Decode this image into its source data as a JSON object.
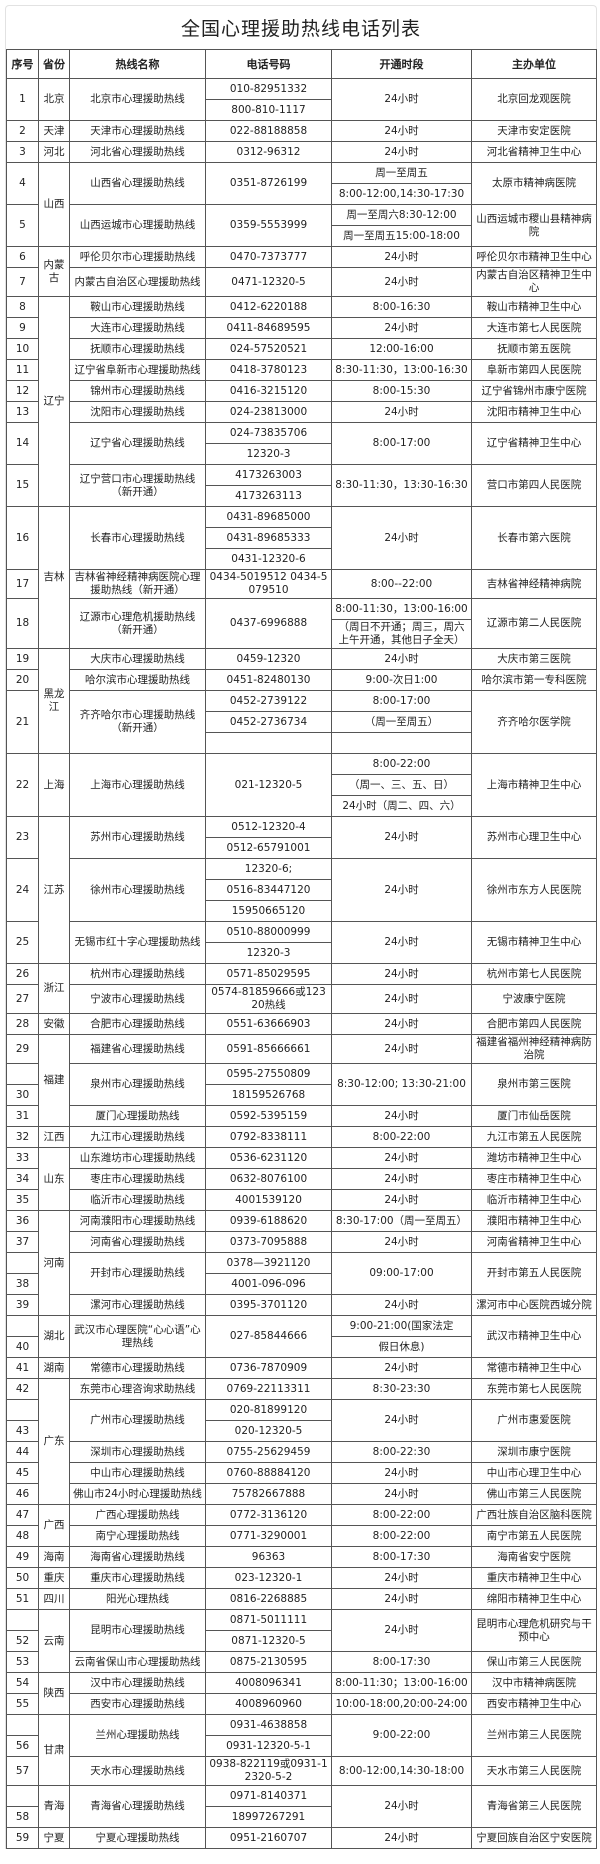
{
  "title": "全国心理援助热线电话列表",
  "headers": [
    "序号",
    "省份",
    "热线名称",
    "电话号码",
    "开通时段",
    "主办单位"
  ],
  "entries": [
    {
      "n": "1",
      "province": "北京",
      "name": "北京市心理援助热线",
      "phones": [
        "010-82951332",
        "800-810-1117"
      ],
      "hours": [
        "24小时"
      ],
      "org": "北京回龙观医院"
    },
    {
      "n": "2",
      "province": "天津",
      "name": "天津市心理援助热线",
      "phones": [
        "022-88188858"
      ],
      "hours": [
        "24小时"
      ],
      "org": "天津市安定医院"
    },
    {
      "n": "3",
      "province": "河北",
      "name": "河北省心理援助热线",
      "phones": [
        "0312-96312"
      ],
      "hours": [
        "24小时"
      ],
      "org": "河北省精神卫生中心"
    },
    {
      "n": "4",
      "province": "山西",
      "name": "山西省心理援助热线",
      "phones": [
        "0351-8726199"
      ],
      "hours": [
        "周一至周五",
        "8:00-12:00,14:30-17:30"
      ],
      "org": "太原市精神病医院"
    },
    {
      "n": "5",
      "province": "山西",
      "name": "山西运城市心理援助热线",
      "phones": [
        "0359-5553999"
      ],
      "hours": [
        "周一至周六8:30-12:00",
        "周一至周五15:00-18:00"
      ],
      "org": "山西运城市稷山县精神病院"
    },
    {
      "n": "6",
      "province": "内蒙古",
      "name": "呼伦贝尔市心理援助热线",
      "phones": [
        "0470-7373777"
      ],
      "hours": [
        "24小时"
      ],
      "org": "呼伦贝尔市精神卫生中心"
    },
    {
      "n": "7",
      "province": "内蒙古",
      "name": "内蒙古自治区心理援助热线",
      "phones": [
        "0471-12320-5"
      ],
      "hours": [
        "24小时"
      ],
      "org": "内蒙古自治区精神卫生中心"
    },
    {
      "n": "8",
      "province": "辽宁",
      "name": "鞍山市心理援助热线",
      "phones": [
        "0412-6220188"
      ],
      "hours": [
        "8:00-16:30"
      ],
      "org": "鞍山市精神卫生中心"
    },
    {
      "n": "9",
      "province": "辽宁",
      "name": "大连市心理援助热线",
      "phones": [
        "0411-84689595"
      ],
      "hours": [
        "24小时"
      ],
      "org": "大连市第七人民医院"
    },
    {
      "n": "10",
      "province": "辽宁",
      "name": "抚顺市心理援助热线",
      "phones": [
        "024-57520521"
      ],
      "hours": [
        "12:00-16:00"
      ],
      "org": "抚顺市第五医院"
    },
    {
      "n": "11",
      "province": "辽宁",
      "name": "辽宁省阜新市心理援助热线",
      "phones": [
        "0418-3780123"
      ],
      "hours": [
        "8:30-11:30，13:00-16:30"
      ],
      "org": "阜新市第四人民医院"
    },
    {
      "n": "12",
      "province": "辽宁",
      "name": "锦州市心理援助热线",
      "phones": [
        "0416-3215120"
      ],
      "hours": [
        "8:00-15:30"
      ],
      "org": "辽宁省锦州市康宁医院"
    },
    {
      "n": "13",
      "province": "辽宁",
      "name": "沈阳市心理援助热线",
      "phones": [
        "024-23813000"
      ],
      "hours": [
        "24小时"
      ],
      "org": "沈阳市精神卫生中心"
    },
    {
      "n": "14",
      "province": "辽宁",
      "name": "辽宁省心理援助热线",
      "phones": [
        "024-73835706",
        "12320-3"
      ],
      "hours": [
        "8:00-17:00"
      ],
      "org": "辽宁省精神卫生中心"
    },
    {
      "n": "15",
      "province": "辽宁",
      "name": "辽宁营口市心理援助热线（新开通）",
      "phones": [
        "4173263003",
        "4173263113"
      ],
      "hours": [
        "8:30-11:30，13:30-16:30"
      ],
      "org": "营口市第四人民医院"
    },
    {
      "n": "16",
      "province": "吉林",
      "name": "长春市心理援助热线",
      "phones": [
        "0431-89685000",
        "0431-89685333",
        "0431-12320-6"
      ],
      "hours": [
        "24小时"
      ],
      "org": "长春市第六医院"
    },
    {
      "n": "17",
      "province": "吉林",
      "name": "吉林省神经精神病医院心理援助热线（新开通）",
      "phones": [
        "0434-5019512 0434-5079510"
      ],
      "hours": [
        "8:00--22:00"
      ],
      "org": "吉林省神经精神病院"
    },
    {
      "n": "18",
      "province": "吉林",
      "name": "辽源市心理危机援助热线（新开通）",
      "phones": [
        "0437-6996888"
      ],
      "hours": [
        "8:00-11:30，13:00-16:00",
        "（周日不开通；周三，周六上午开通，其他日子全天）"
      ],
      "org": "辽源市第二人民医院"
    },
    {
      "n": "19",
      "province": "黑龙江",
      "name": "大庆市心理援助热线",
      "phones": [
        "0459-12320"
      ],
      "hours": [
        "24小时"
      ],
      "org": "大庆市第三医院"
    },
    {
      "n": "20",
      "province": "黑龙江",
      "name": "哈尔滨市心理援助热线",
      "phones": [
        "0451-82480130"
      ],
      "hours": [
        "9:00-次日1:00"
      ],
      "org": "哈尔滨市第一专科医院"
    },
    {
      "n": "21",
      "province": "黑龙江",
      "name": "齐齐哈尔市心理援助热线（新开通）",
      "phones": [
        "0452-2739122",
        "0452-2736734",
        ""
      ],
      "hours": [
        "8:00-17:00",
        "（周一至周五）",
        ""
      ],
      "org": "齐齐哈尔医学院"
    },
    {
      "n": "22",
      "province": "上海",
      "name": "上海市心理援助热线",
      "phones": [
        "021-12320-5"
      ],
      "hours": [
        "8:00-22:00",
        "（周一、三、五、日）",
        "24小时（周二、四、六）"
      ],
      "org": "上海市精神卫生中心"
    },
    {
      "n": "23",
      "province": "江苏",
      "name": "苏州市心理援助热线",
      "phones": [
        "0512-12320-4",
        "0512-65791001"
      ],
      "hours": [
        "24小时"
      ],
      "org": "苏州市心理卫生中心"
    },
    {
      "n": "24",
      "province": "江苏",
      "name": "徐州市心理援助热线",
      "phones": [
        "12320-6;",
        "0516-83447120",
        "15950665120"
      ],
      "hours": [
        "24小时"
      ],
      "org": "徐州市东方人民医院"
    },
    {
      "n": "25",
      "province": "江苏",
      "name": "无锡市红十字心理援助热线",
      "phones": [
        "0510-88000999",
        "12320-3"
      ],
      "hours": [
        "24小时"
      ],
      "org": "无锡市精神卫生中心"
    },
    {
      "n": "26",
      "province": "浙江",
      "name": "杭州市心理援助热线",
      "phones": [
        "0571-85029595"
      ],
      "hours": [
        "24小时"
      ],
      "org": "杭州市第七人民医院"
    },
    {
      "n": "27",
      "province": "浙江",
      "name": "宁波市心理援助热线",
      "phones": [
        "0574-81859666或12320热线"
      ],
      "hours": [
        "24小时"
      ],
      "org": "宁波康宁医院"
    },
    {
      "n": "28",
      "province": "安徽",
      "name": "合肥市心理援助热线",
      "phones": [
        "0551-63666903"
      ],
      "hours": [
        "24小时"
      ],
      "org": "合肥市第四人民医院"
    },
    {
      "n": "29",
      "province": "福建",
      "name": "福建省心理援助热线",
      "phones": [
        "0591-85666661"
      ],
      "hours": [
        "24小时"
      ],
      "org": "福建省福州神经精神病防治院"
    },
    {
      "n": "30",
      "province": "福建",
      "name": "泉州市心理援助热线",
      "phones": [
        "0595-27550809",
        "18159526768"
      ],
      "hours": [
        "8:30-12:00; 13:30-21:00"
      ],
      "org": "泉州市第三医院",
      "split": true
    },
    {
      "n": "31",
      "province": "福建",
      "name": "厦门心理援助热线",
      "phones": [
        "0592-5395159"
      ],
      "hours": [
        "24小时"
      ],
      "org": "厦门市仙岳医院"
    },
    {
      "n": "32",
      "province": "江西",
      "name": "九江市心理援助热线",
      "phones": [
        "0792-8338111"
      ],
      "hours": [
        "8:00-22:00"
      ],
      "org": "九江市第五人民医院"
    },
    {
      "n": "33",
      "province": "山东",
      "name": "山东潍坊市心理援助热线",
      "phones": [
        "0536-6231120"
      ],
      "hours": [
        "24小时"
      ],
      "org": "潍坊市精神卫生中心"
    },
    {
      "n": "34",
      "province": "山东",
      "name": "枣庄市心理援助热线",
      "phones": [
        "0632-8076100"
      ],
      "hours": [
        "24小时"
      ],
      "org": "枣庄市精神卫生中心"
    },
    {
      "n": "35",
      "province": "山东",
      "name": "临沂市心理援助热线",
      "phones": [
        "4001539120"
      ],
      "hours": [
        "24小时"
      ],
      "org": "临沂市精神卫生中心"
    },
    {
      "n": "36",
      "province": "河南",
      "name": "河南濮阳市心理援助热线",
      "phones": [
        "0939-6188620"
      ],
      "hours": [
        "8:30-17:00（周一至周五）"
      ],
      "org": "濮阳市精神卫生中心"
    },
    {
      "n": "37",
      "province": "河南",
      "name": "河南省心理援助热线",
      "phones": [
        "0373-7095888"
      ],
      "hours": [
        "24小时"
      ],
      "org": "河南省精神卫生中心"
    },
    {
      "n": "38",
      "province": "河南",
      "name": "开封市心理援助热线",
      "phones": [
        "0378—3921120",
        "4001-096-096"
      ],
      "hours": [
        "09:00-17:00"
      ],
      "org": "开封市第五人民医院",
      "split": true
    },
    {
      "n": "39",
      "province": "河南",
      "name": "漯河市心理援助热线",
      "phones": [
        "0395-3701120"
      ],
      "hours": [
        "24小时"
      ],
      "org": "漯河市中心医院西城分院"
    },
    {
      "n": "40",
      "province": "湖北",
      "name": "武汉市心理医院“心心语”心理热线",
      "phones": [
        "027-85844666"
      ],
      "hours": [
        "9:00-21:00(国家法定",
        "假日休息)"
      ],
      "org": "武汉市精神卫生中心",
      "split": true
    },
    {
      "n": "41",
      "province": "湖南",
      "name": "常德市心理援助热线",
      "phones": [
        "0736-7870909"
      ],
      "hours": [
        "24小时"
      ],
      "org": "常德市精神卫生中心"
    },
    {
      "n": "42",
      "province": "广东",
      "name": "东莞市心理咨询求助热线",
      "phones": [
        "0769-22113311"
      ],
      "hours": [
        "8:30-23:30"
      ],
      "org": "东莞市第七人民医院"
    },
    {
      "n": "43",
      "province": "广东",
      "name": "广州市心理援助热线",
      "phones": [
        "020-81899120",
        "020-12320-5"
      ],
      "hours": [
        "24小时"
      ],
      "org": "广州市惠爱医院",
      "split": true
    },
    {
      "n": "44",
      "province": "广东",
      "name": "深圳市心理援助热线",
      "phones": [
        "0755-25629459"
      ],
      "hours": [
        "8:00-22:30"
      ],
      "org": "深圳市康宁医院"
    },
    {
      "n": "45",
      "province": "广东",
      "name": "中山市心理援助热线",
      "phones": [
        "0760-88884120"
      ],
      "hours": [
        "24小时"
      ],
      "org": "中山市心理卫生中心"
    },
    {
      "n": "46",
      "province": "广东",
      "name": "佛山市24小时心理援助热线",
      "phones": [
        "75782667888"
      ],
      "hours": [
        "24小时"
      ],
      "org": "佛山市第三人民医院"
    },
    {
      "n": "47",
      "province": "广西",
      "name": "广西心理援助热线",
      "phones": [
        "0772-3136120"
      ],
      "hours": [
        "8:00-22:00"
      ],
      "org": "广西壮族自治区脑科医院"
    },
    {
      "n": "48",
      "province": "广西",
      "name": "南宁心理援助热线",
      "phones": [
        "0771-3290001"
      ],
      "hours": [
        "8:00-22:00"
      ],
      "org": "南宁市第五人民医院"
    },
    {
      "n": "49",
      "province": "海南",
      "name": "海南省心理援助热线",
      "phones": [
        "96363"
      ],
      "hours": [
        "8:00-17:30"
      ],
      "org": "海南省安宁医院"
    },
    {
      "n": "50",
      "province": "重庆",
      "name": "重庆市心理援助热线",
      "phones": [
        "023-12320-1"
      ],
      "hours": [
        "24小时"
      ],
      "org": "重庆市精神卫生中心"
    },
    {
      "n": "51",
      "province": "四川",
      "name": "阳光心理热线",
      "phones": [
        "0816-2268885"
      ],
      "hours": [
        "24小时"
      ],
      "org": "绵阳市精神卫生中心"
    },
    {
      "n": "52",
      "province": "云南",
      "name": "昆明市心理援助热线",
      "phones": [
        "0871-5011111",
        "0871-12320-5"
      ],
      "hours": [
        "24小时"
      ],
      "org": "昆明市心理危机研究与干预中心",
      "split": true
    },
    {
      "n": "53",
      "province": "云南",
      "name": "云南省保山市心理援助热线",
      "phones": [
        "0875-2130595"
      ],
      "hours": [
        "8:00-17:30"
      ],
      "org": "保山市第三人民医院"
    },
    {
      "n": "54",
      "province": "陕西",
      "name": "汉中市心理援助热线",
      "phones": [
        "4008096341"
      ],
      "hours": [
        "8:00-11:30；13:00-16:00"
      ],
      "org": "汉中市精神病医院"
    },
    {
      "n": "55",
      "province": "陕西",
      "name": "西安市心理援助热线",
      "phones": [
        "4008960960"
      ],
      "hours": [
        "10:00-18:00,20:00-24:00"
      ],
      "org": "西安市精神卫生中心"
    },
    {
      "n": "56",
      "province": "甘肃",
      "name": "兰州心理援助热线",
      "phones": [
        "0931-4638858",
        "0931-12320-5-1"
      ],
      "hours": [
        "9:00-22:00"
      ],
      "org": "兰州市第三人民医院",
      "split": true
    },
    {
      "n": "57",
      "province": "甘肃",
      "name": "天水市心理援助热线",
      "phones": [
        "0938-822119或0931-12320-5-2"
      ],
      "hours": [
        "8:00-12:00,14:30-18:00"
      ],
      "org": "天水市第三人民医院"
    },
    {
      "n": "58",
      "province": "青海",
      "name": "青海省心理援助热线",
      "phones": [
        "0971-8140371",
        "18997267291"
      ],
      "hours": [
        "24小时"
      ],
      "org": "青海省第三人民医院",
      "split": true
    },
    {
      "n": "59",
      "province": "宁夏",
      "name": "宁夏心理援助热线",
      "phones": [
        "0951-2160707"
      ],
      "hours": [
        "24小时"
      ],
      "org": "宁夏回族自治区宁安医院"
    }
  ]
}
